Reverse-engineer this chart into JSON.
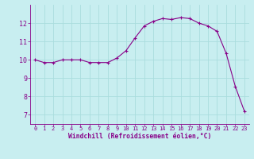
{
  "x": [
    0,
    1,
    2,
    3,
    4,
    5,
    6,
    7,
    8,
    9,
    10,
    11,
    12,
    13,
    14,
    15,
    16,
    17,
    18,
    19,
    20,
    21,
    22,
    23
  ],
  "y": [
    10.0,
    9.85,
    9.85,
    10.0,
    10.0,
    10.0,
    9.85,
    9.85,
    9.85,
    10.1,
    10.5,
    11.2,
    11.85,
    12.1,
    12.25,
    12.2,
    12.3,
    12.25,
    12.0,
    11.85,
    11.55,
    10.35,
    8.55,
    7.2
  ],
  "line_color": "#880088",
  "marker_color": "#880088",
  "bg_color": "#C8EEF0",
  "grid_color": "#AADDDD",
  "xlabel": "Windchill (Refroidissement éolien,°C)",
  "xlabel_color": "#880088",
  "tick_color": "#880088",
  "ylim": [
    6.5,
    13.0
  ],
  "xlim": [
    -0.5,
    23.5
  ],
  "yticks": [
    7,
    8,
    9,
    10,
    11,
    12
  ],
  "xticks": [
    0,
    1,
    2,
    3,
    4,
    5,
    6,
    7,
    8,
    9,
    10,
    11,
    12,
    13,
    14,
    15,
    16,
    17,
    18,
    19,
    20,
    21,
    22,
    23
  ],
  "xtick_labels": [
    "0",
    "1",
    "2",
    "3",
    "4",
    "5",
    "6",
    "7",
    "8",
    "9",
    "10",
    "11",
    "12",
    "13",
    "14",
    "15",
    "16",
    "17",
    "18",
    "19",
    "20",
    "21",
    "22",
    "23"
  ]
}
